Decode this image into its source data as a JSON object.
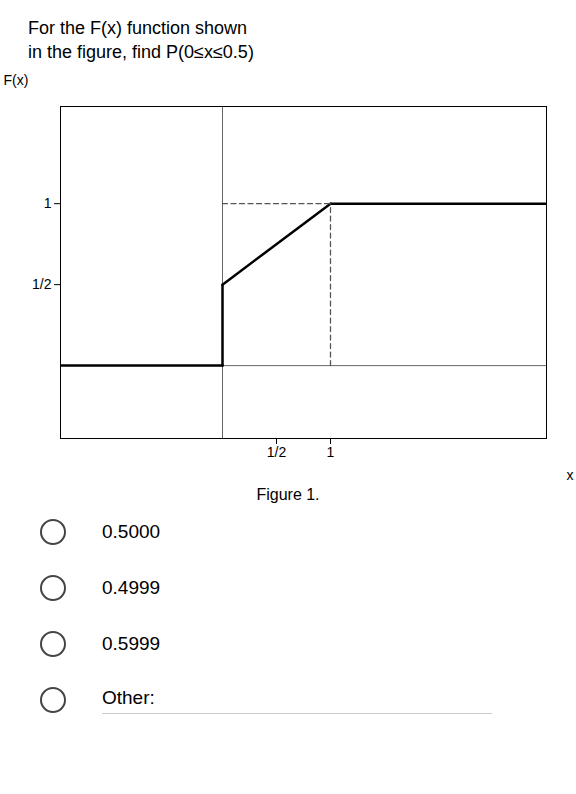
{
  "chart_data": {
    "type": "line",
    "title": "For the F(x) function shown",
    "subtitle": "in the figure, find P(0≤x≤0.5)",
    "caption": "Figure 1.",
    "annotations": [
      "0.5000",
      "0.4999",
      "0.5999",
      "Other:"
    ],
    "xlabel": "x",
    "ylabel": "F(x)",
    "xlim": [
      -1.5,
      3.0
    ],
    "ylim": [
      -0.45,
      1.6
    ],
    "xticks": [
      {
        "value": 0.5,
        "label": "1/2"
      },
      1
    ],
    "yticks": [
      {
        "value": 0.5,
        "label": "1/2"
      },
      1
    ],
    "grid": false,
    "series": [
      {
        "x": [
          -1.5,
          0.0
        ],
        "values": [
          0.0,
          0.0
        ],
        "color": "#000000",
        "line_style": "solid"
      },
      {
        "x": [
          0.0,
          1.0
        ],
        "values": [
          0.5,
          1.0
        ],
        "color": "#000000",
        "line_style": "solid"
      },
      {
        "x": [
          1.0,
          3.0
        ],
        "values": [
          1.0,
          1.0
        ],
        "color": "#000000",
        "line_style": "solid"
      },
      {
        "x": [
          0.0,
          0.0
        ],
        "values": [
          0.0,
          0.5
        ],
        "color": "#000000",
        "line_style": "solid"
      },
      {
        "x": [
          0.0,
          1.0
        ],
        "values": [
          1.0,
          1.0
        ],
        "color": "#555555",
        "line_style": "dashed"
      },
      {
        "x": [
          1.0,
          1.0
        ],
        "values": [
          0.0,
          1.0
        ],
        "color": "#555555",
        "line_style": "dashed"
      }
    ]
  }
}
